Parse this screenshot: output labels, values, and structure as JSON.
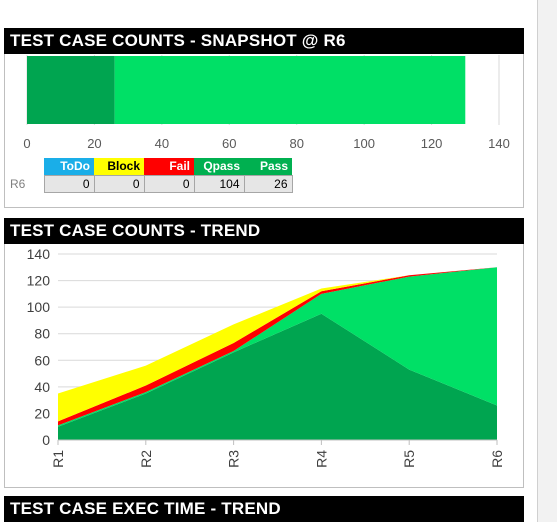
{
  "snapshot": {
    "title": "TEST CASE COUNTS - SNAPSHOT @ R6"
  },
  "trend": {
    "title": "TEST CASE COUNTS - TREND"
  },
  "exec": {
    "title": "TEST CASE EXEC TIME - TREND"
  },
  "table": {
    "headers": [
      "ToDo",
      "Block",
      "Fail",
      "Qpass",
      "Pass"
    ],
    "header_colors": [
      "#1aaee8",
      "#ffff00",
      "#ff0000",
      "#00b050",
      "#00b050"
    ],
    "row_label": "R6",
    "values": [
      "0",
      "0",
      "0",
      "104",
      "26"
    ]
  },
  "chart_data": [
    {
      "type": "bar",
      "orientation": "horizontal",
      "stacked": true,
      "categories": [
        "R6"
      ],
      "series": [
        {
          "name": "Pass",
          "values": [
            26
          ],
          "color": "#00a550"
        },
        {
          "name": "Qpass",
          "values": [
            104
          ],
          "color": "#00e066"
        },
        {
          "name": "Fail",
          "values": [
            0
          ],
          "color": "#ff0000"
        },
        {
          "name": "Block",
          "values": [
            0
          ],
          "color": "#ffff00"
        },
        {
          "name": "ToDo",
          "values": [
            0
          ],
          "color": "#1aaee8"
        }
      ],
      "xlim": [
        0,
        140
      ],
      "xticks": [
        "0",
        "20",
        "40",
        "60",
        "80",
        "100",
        "120",
        "140"
      ],
      "grid": true
    },
    {
      "type": "area",
      "stacked": true,
      "categories": [
        "R1",
        "R2",
        "R3",
        "R4",
        "R5",
        "R6"
      ],
      "series": [
        {
          "name": "Pass",
          "values": [
            10,
            35,
            66,
            95,
            53,
            26
          ],
          "color": "#00a550"
        },
        {
          "name": "Qpass",
          "values": [
            1,
            1,
            1,
            15,
            70,
            104
          ],
          "color": "#00e066"
        },
        {
          "name": "Fail",
          "values": [
            3,
            5,
            6,
            2,
            1,
            0
          ],
          "color": "#ff0000"
        },
        {
          "name": "Block",
          "values": [
            21,
            15,
            14,
            2,
            0,
            0
          ],
          "color": "#ffff00"
        },
        {
          "name": "ToDo",
          "values": [
            0,
            0,
            0,
            0,
            0,
            0
          ],
          "color": "#1aaee8"
        }
      ],
      "ylim": [
        0,
        140
      ],
      "yticks": [
        "0",
        "20",
        "40",
        "60",
        "80",
        "100",
        "120",
        "140"
      ],
      "grid": true
    }
  ]
}
